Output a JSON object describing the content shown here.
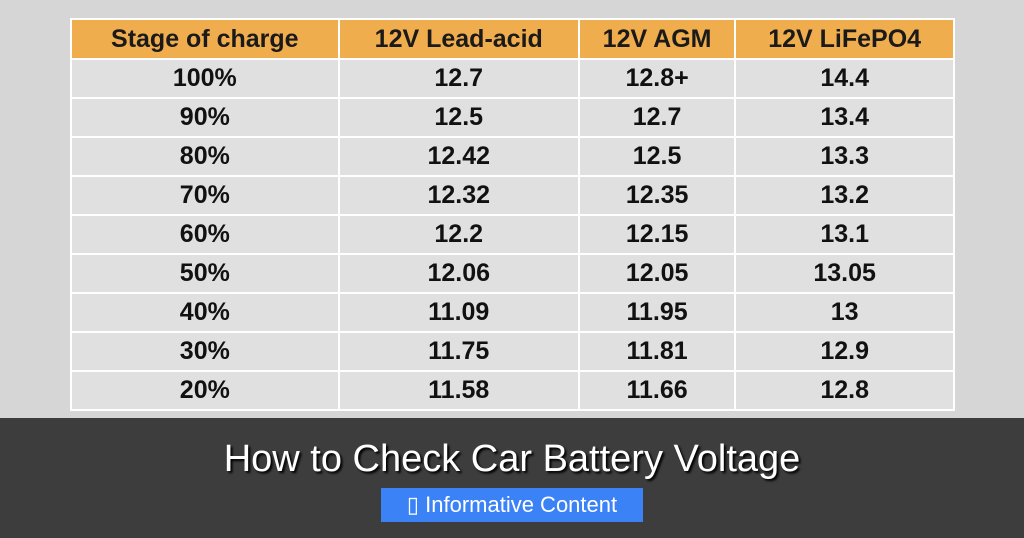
{
  "table": {
    "headers": [
      "Stage of charge",
      "12V Lead-acid",
      "12V AGM",
      "12V LiFePO4"
    ],
    "rows": [
      [
        "100%",
        "12.7",
        "12.8+",
        "14.4"
      ],
      [
        "90%",
        "12.5",
        "12.7",
        "13.4"
      ],
      [
        "80%",
        "12.42",
        "12.5",
        "13.3"
      ],
      [
        "70%",
        "12.32",
        "12.35",
        "13.2"
      ],
      [
        "60%",
        "12.2",
        "12.15",
        "13.1"
      ],
      [
        "50%",
        "12.06",
        "12.05",
        "13.05"
      ],
      [
        "40%",
        "11.09",
        "11.95",
        "13"
      ],
      [
        "30%",
        "11.75",
        "11.81",
        "12.9"
      ],
      [
        "20%",
        "11.58",
        "11.66",
        "12.8"
      ]
    ]
  },
  "overlay": {
    "title": "How to Check Car Battery Voltage",
    "badge_icon": "tag-icon",
    "badge_label": "Informative Content"
  },
  "colors": {
    "header": "#f0ad4e",
    "badge": "#3b82f6"
  }
}
